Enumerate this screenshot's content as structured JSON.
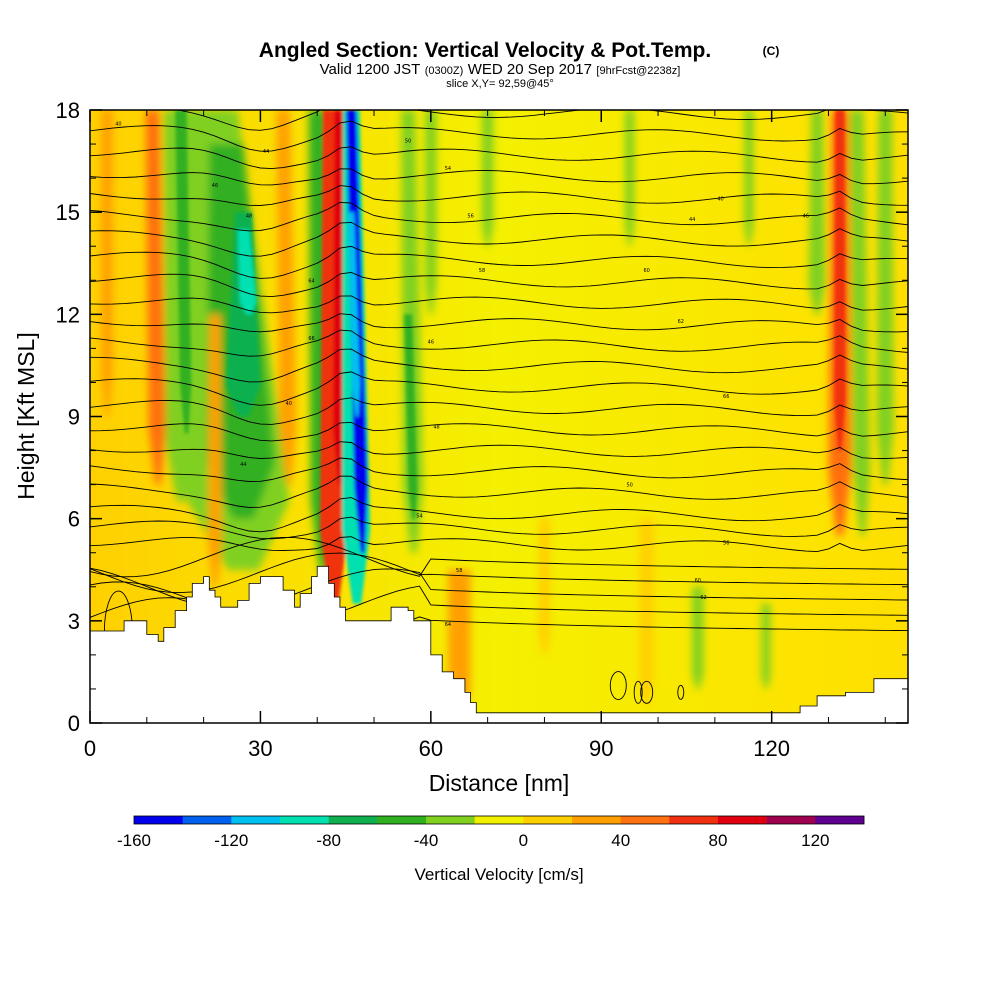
{
  "chart_data": {
    "type": "heatmap",
    "title": "Angled Section: Vertical Velocity & Pot.Temp.",
    "title_suffix": "(C)",
    "subtitle": {
      "prefix": "Valid 1200 JST",
      "utc": "(0300Z)",
      "date": "WED 20 Sep 2017",
      "forecast": "[9hrFcst@2238z]"
    },
    "slice_label": "slice X,Y= 92,59@45°",
    "xlabel": "Distance [nm]",
    "ylabel": "Height [Kft MSL]",
    "xlim": [
      0,
      144
    ],
    "ylim": [
      0,
      18
    ],
    "x_ticks": [
      "0",
      "30",
      "60",
      "90",
      "120"
    ],
    "y_ticks": [
      "0",
      "3",
      "6",
      "9",
      "12",
      "15",
      "18"
    ],
    "colorbar": {
      "label": "Vertical Velocity [cm/s]",
      "range": [
        -160,
        140
      ],
      "step": 20,
      "tick_labels": [
        "-160",
        "-120",
        "-80",
        "-40",
        "0",
        "40",
        "80",
        "120"
      ],
      "colors": [
        "#0000ee",
        "#0060f0",
        "#00c0f0",
        "#00e0b0",
        "#10b050",
        "#30b020",
        "#80d020",
        "#f0f000",
        "#ffd000",
        "#ffa000",
        "#ff7010",
        "#f03010",
        "#e00010",
        "#a00050",
        "#600090"
      ]
    },
    "features": [
      {
        "name": "downdraft",
        "x": 47,
        "min_value": -160
      },
      {
        "name": "updraft",
        "x": 44,
        "max_value": 100
      },
      {
        "name": "updraft",
        "x": 132,
        "max_value": 80
      },
      {
        "name": "broad downdraft",
        "x": 27,
        "min_value": -100
      }
    ],
    "isentrope_labels": [
      "40",
      "44",
      "46",
      "48",
      "50",
      "54",
      "56",
      "58",
      "60",
      "62",
      "64",
      "66"
    ],
    "terrain": [
      [
        0,
        2.7
      ],
      [
        5,
        2.7
      ],
      [
        6,
        3.0
      ],
      [
        8,
        3.0
      ],
      [
        10,
        2.6
      ],
      [
        12,
        2.4
      ],
      [
        13,
        2.8
      ],
      [
        14,
        2.8
      ],
      [
        15,
        3.3
      ],
      [
        17,
        3.7
      ],
      [
        18,
        4.1
      ],
      [
        20,
        4.3
      ],
      [
        21,
        3.9
      ],
      [
        22,
        3.7
      ],
      [
        23,
        3.4
      ],
      [
        25,
        3.4
      ],
      [
        26,
        3.6
      ],
      [
        28,
        4.1
      ],
      [
        30,
        4.3
      ],
      [
        33,
        4.3
      ],
      [
        34,
        3.9
      ],
      [
        36,
        3.4
      ],
      [
        37,
        3.8
      ],
      [
        39,
        4.3
      ],
      [
        40,
        4.6
      ],
      [
        42,
        4.1
      ],
      [
        43,
        3.7
      ],
      [
        44,
        3.4
      ],
      [
        45,
        3.0
      ],
      [
        48,
        3.0
      ],
      [
        52,
        3.0
      ],
      [
        53,
        3.4
      ],
      [
        56,
        3.3
      ],
      [
        57,
        3.0
      ],
      [
        60,
        2.0
      ],
      [
        62,
        1.5
      ],
      [
        64,
        1.3
      ],
      [
        66,
        0.9
      ],
      [
        67,
        0.6
      ],
      [
        68,
        0.3
      ],
      [
        80,
        0.3
      ],
      [
        120,
        0.3
      ],
      [
        125,
        0.5
      ],
      [
        128,
        0.8
      ],
      [
        133,
        0.9
      ],
      [
        138,
        1.3
      ],
      [
        144,
        1.3
      ]
    ]
  }
}
